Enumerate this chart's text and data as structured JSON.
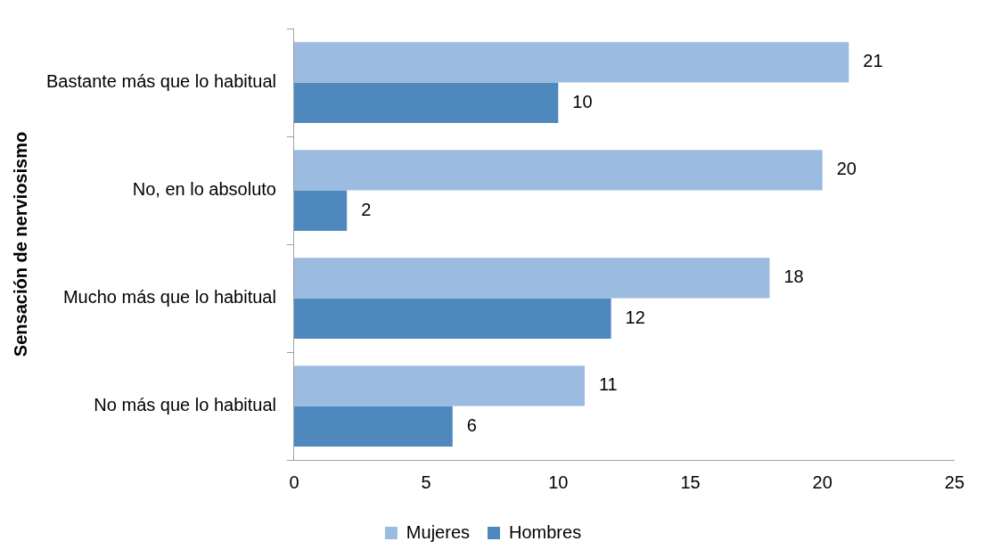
{
  "chart_data": {
    "type": "bar",
    "orientation": "horizontal",
    "ylabel": "Sensación de nerviosismo",
    "categories": [
      "Bastante más que lo habitual",
      "No, en lo absoluto",
      "Mucho más que lo habitual",
      "No más que lo habitual"
    ],
    "series": [
      {
        "name": "Mujeres",
        "color": "#9bbbe0",
        "values": [
          21,
          20,
          18,
          11
        ]
      },
      {
        "name": "Hombres",
        "color": "#4f88bd",
        "values": [
          10,
          2,
          12,
          6
        ]
      }
    ],
    "xlim": [
      0,
      25
    ],
    "xticks": [
      0,
      5,
      10,
      15,
      20,
      25
    ],
    "grid": false,
    "legend": "bottom",
    "data_labels": true
  }
}
